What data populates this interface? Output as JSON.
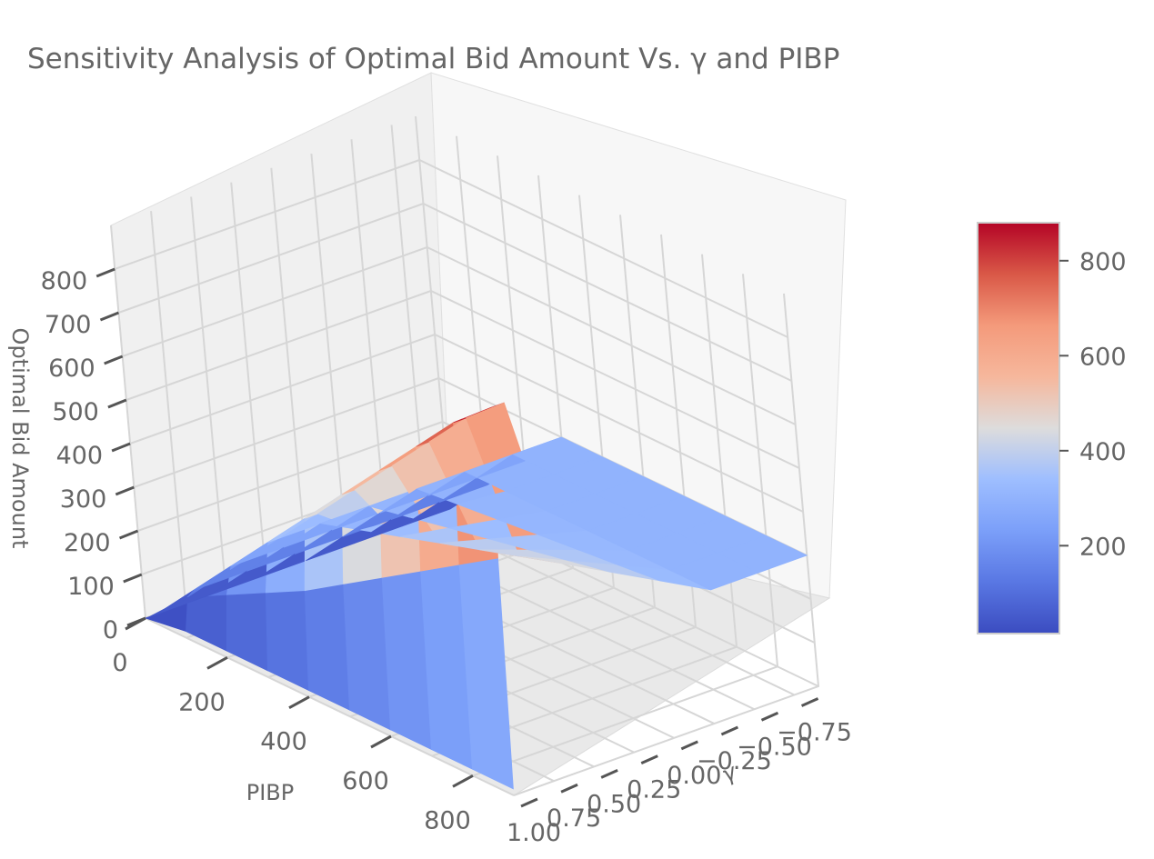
{
  "chart_data": {
    "type": "surface3d",
    "title": "Sensitivity Analysis of Optimal Bid Amount Vs. γ and PIBP",
    "xlabel": "PIBP",
    "ylabel": "γ",
    "zlabel": "Optimal Bid Amount",
    "x_ticks": [
      "0",
      "200",
      "400",
      "600",
      "800"
    ],
    "y_ticks": [
      "−0.75",
      "−0.50",
      "−0.25",
      "0.00",
      "0.25",
      "0.50",
      "0.75",
      "1.00"
    ],
    "z_ticks": [
      "0",
      "100",
      "200",
      "300",
      "400",
      "500",
      "600",
      "700",
      "800"
    ],
    "xlim": [
      0,
      900
    ],
    "ylim": [
      -0.9,
      1.0
    ],
    "zlim": [
      0,
      900
    ],
    "colormap": "coolwarm",
    "colorbar": {
      "ticks": [
        "200",
        "400",
        "600",
        "800"
      ],
      "range": [
        15,
        880
      ]
    },
    "surface": {
      "description_of_shape": "Bid equals PIBP for gamma near 0.9 and drops to near 0 at gamma ≈ 1; for lower gamma, bid ≈ min(PIBP, 300)",
      "x": [
        0,
        100,
        200,
        300,
        400,
        500,
        600,
        700,
        800,
        900
      ],
      "y": [
        -0.9,
        -0.6,
        -0.3,
        0.0,
        0.3,
        0.6,
        0.85,
        0.93,
        0.97,
        1.0
      ],
      "z": [
        [
          0,
          0,
          0,
          0,
          0,
          0,
          0,
          0,
          0,
          0
        ],
        [
          100,
          100,
          100,
          100,
          100,
          100,
          100,
          100,
          90,
          15
        ],
        [
          200,
          200,
          200,
          200,
          200,
          200,
          200,
          200,
          140,
          15
        ],
        [
          300,
          300,
          300,
          300,
          300,
          300,
          300,
          300,
          190,
          15
        ],
        [
          300,
          300,
          300,
          310,
          320,
          330,
          400,
          400,
          240,
          15
        ],
        [
          300,
          300,
          300,
          320,
          340,
          360,
          500,
          500,
          300,
          15
        ],
        [
          300,
          300,
          300,
          330,
          360,
          390,
          600,
          600,
          360,
          15
        ],
        [
          300,
          300,
          300,
          340,
          380,
          420,
          700,
          700,
          420,
          15
        ],
        [
          300,
          300,
          300,
          350,
          400,
          450,
          800,
          800,
          480,
          15
        ],
        [
          300,
          300,
          300,
          360,
          420,
          480,
          880,
          880,
          540,
          15
        ]
      ]
    }
  }
}
